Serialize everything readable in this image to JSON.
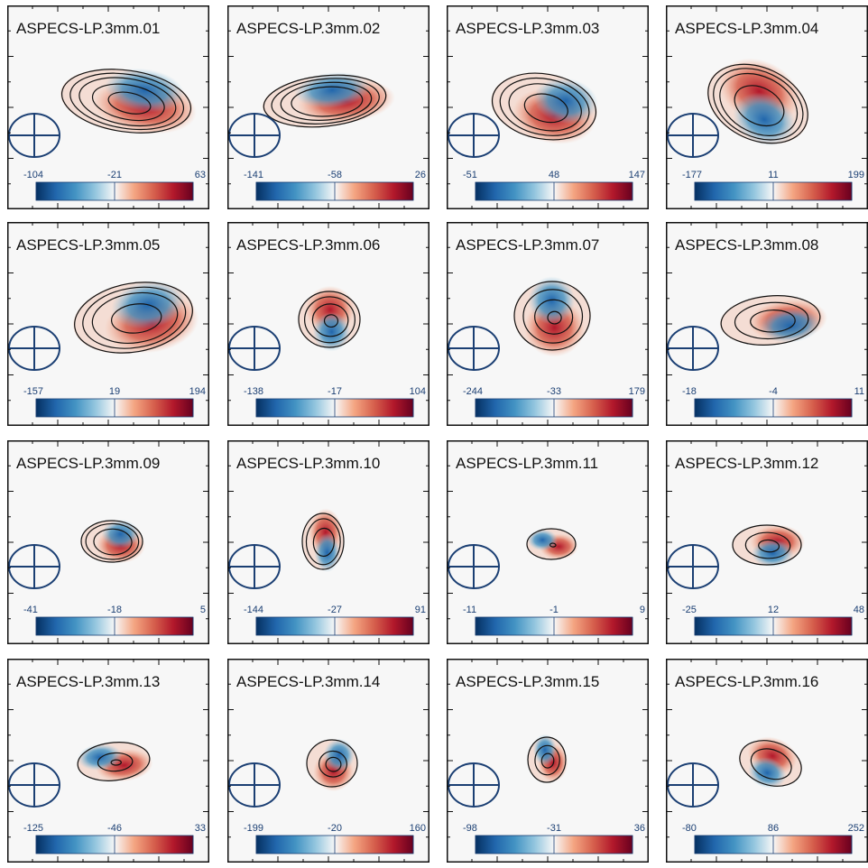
{
  "figure": {
    "panels": [
      {
        "title": "ASPECS-LP.3mm.01",
        "cbar": [
          "-104",
          "-21",
          "63"
        ]
      },
      {
        "title": "ASPECS-LP.3mm.02",
        "cbar": [
          "-141",
          "-58",
          "26"
        ]
      },
      {
        "title": "ASPECS-LP.3mm.03",
        "cbar": [
          "-51",
          "48",
          "147"
        ]
      },
      {
        "title": "ASPECS-LP.3mm.04",
        "cbar": [
          "-177",
          "11",
          "199"
        ]
      },
      {
        "title": "ASPECS-LP.3mm.05",
        "cbar": [
          "-157",
          "19",
          "194"
        ]
      },
      {
        "title": "ASPECS-LP.3mm.06",
        "cbar": [
          "-138",
          "-17",
          "104"
        ]
      },
      {
        "title": "ASPECS-LP.3mm.07",
        "cbar": [
          "-244",
          "-33",
          "179"
        ]
      },
      {
        "title": "ASPECS-LP.3mm.08",
        "cbar": [
          "-18",
          "-4",
          "11"
        ]
      },
      {
        "title": "ASPECS-LP.3mm.09",
        "cbar": [
          "-41",
          "-18",
          "5"
        ]
      },
      {
        "title": "ASPECS-LP.3mm.10",
        "cbar": [
          "-144",
          "-27",
          "91"
        ]
      },
      {
        "title": "ASPECS-LP.3mm.11",
        "cbar": [
          "-11",
          "-1",
          "9"
        ]
      },
      {
        "title": "ASPECS-LP.3mm.12",
        "cbar": [
          "-25",
          "12",
          "48"
        ]
      },
      {
        "title": "ASPECS-LP.3mm.13",
        "cbar": [
          "-125",
          "-46",
          "33"
        ]
      },
      {
        "title": "ASPECS-LP.3mm.14",
        "cbar": [
          "-199",
          "-20",
          "160"
        ]
      },
      {
        "title": "ASPECS-LP.3mm.15",
        "cbar": [
          "-98",
          "-31",
          "36"
        ]
      },
      {
        "title": "ASPECS-LP.3mm.16",
        "cbar": [
          "-80",
          "86",
          "252"
        ]
      }
    ],
    "colors": {
      "background": "#f7f7f7",
      "frame": "#111111",
      "contour": "#111111",
      "beam": "#1b3f73",
      "red": "#b2182b",
      "blue": "#2166ac",
      "cmap": [
        "#053061",
        "#2166ac",
        "#4393c3",
        "#92c5de",
        "#f7f7f7",
        "#f4a582",
        "#d6604d",
        "#b2182b",
        "#67001f"
      ]
    },
    "colorbar_orientation": "horizontal",
    "beam_shape": "ellipse with cross"
  }
}
